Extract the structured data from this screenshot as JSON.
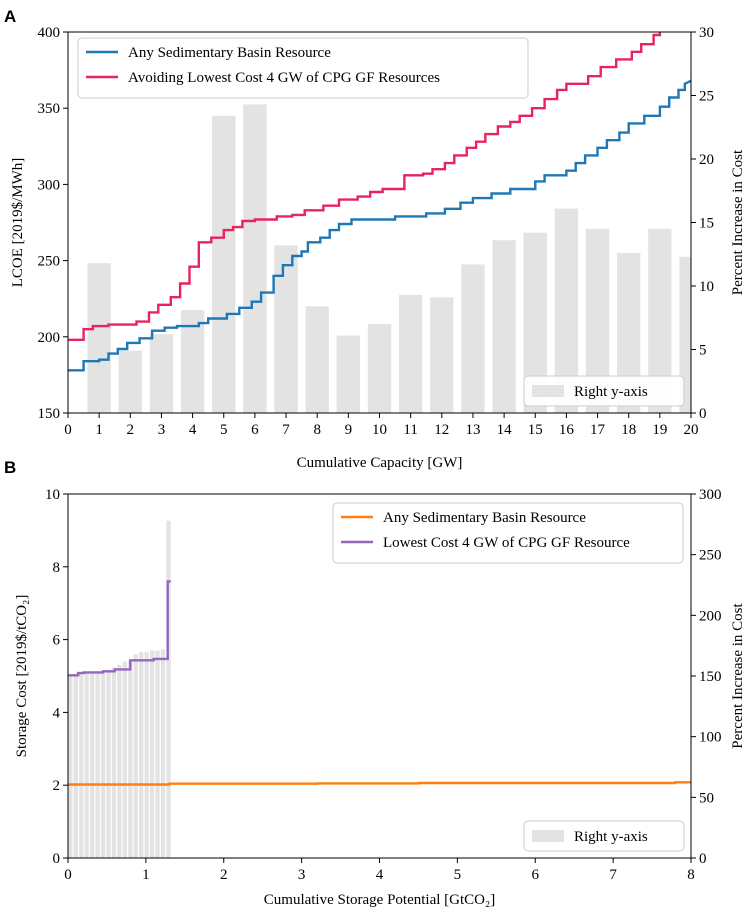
{
  "chart_data": [
    {
      "panel": "A",
      "type": "line+bar",
      "xlabel": "Cumulative Capacity [GW]",
      "ylabel": "LCOE [2019$/MWh]",
      "y2label": "Percent Increase in Cost",
      "xlim": [
        0,
        20
      ],
      "ylim": [
        150,
        400
      ],
      "y2lim": [
        0,
        30
      ],
      "xticks": [
        "0",
        "1",
        "2",
        "3",
        "4",
        "5",
        "6",
        "7",
        "8",
        "9",
        "10",
        "11",
        "12",
        "13",
        "14",
        "15",
        "16",
        "17",
        "18",
        "19",
        "20"
      ],
      "yticks": [
        "150",
        "200",
        "250",
        "300",
        "350",
        "400"
      ],
      "y2ticks": [
        "0",
        "5",
        "10",
        "15",
        "20",
        "25",
        "30"
      ],
      "legend_position": "top-left",
      "bar_legend_label": "Right y-axis",
      "bar_legend_position": "bottom-right",
      "series": [
        {
          "name": "Any Sedimentary Basin Resource",
          "color": "#1f77b4",
          "points": [
            [
              0,
              178
            ],
            [
              0.5,
              178
            ],
            [
              0.5,
              184
            ],
            [
              1,
              184
            ],
            [
              1,
              185
            ],
            [
              1.3,
              185
            ],
            [
              1.3,
              189
            ],
            [
              1.6,
              189
            ],
            [
              1.6,
              192
            ],
            [
              1.9,
              192
            ],
            [
              1.9,
              196
            ],
            [
              2.3,
              196
            ],
            [
              2.3,
              199
            ],
            [
              2.7,
              199
            ],
            [
              2.7,
              204
            ],
            [
              3.1,
              204
            ],
            [
              3.1,
              206
            ],
            [
              3.5,
              206
            ],
            [
              3.5,
              207
            ],
            [
              4.2,
              207
            ],
            [
              4.2,
              209
            ],
            [
              4.5,
              209
            ],
            [
              4.5,
              212
            ],
            [
              5.1,
              212
            ],
            [
              5.1,
              215
            ],
            [
              5.5,
              215
            ],
            [
              5.5,
              219
            ],
            [
              5.9,
              219
            ],
            [
              5.9,
              223
            ],
            [
              6.2,
              223
            ],
            [
              6.2,
              229
            ],
            [
              6.6,
              229
            ],
            [
              6.6,
              240
            ],
            [
              6.9,
              240
            ],
            [
              6.9,
              247
            ],
            [
              7.2,
              247
            ],
            [
              7.2,
              253
            ],
            [
              7.5,
              253
            ],
            [
              7.5,
              256
            ],
            [
              7.7,
              256
            ],
            [
              7.7,
              262
            ],
            [
              8.1,
              262
            ],
            [
              8.1,
              265
            ],
            [
              8.4,
              265
            ],
            [
              8.4,
              270
            ],
            [
              8.7,
              270
            ],
            [
              8.7,
              274
            ],
            [
              9.1,
              274
            ],
            [
              9.1,
              277
            ],
            [
              10.5,
              277
            ],
            [
              10.5,
              279
            ],
            [
              11.5,
              279
            ],
            [
              11.5,
              281
            ],
            [
              12.1,
              281
            ],
            [
              12.1,
              284
            ],
            [
              12.6,
              284
            ],
            [
              12.6,
              288
            ],
            [
              13.0,
              288
            ],
            [
              13.0,
              291
            ],
            [
              13.6,
              291
            ],
            [
              13.6,
              294
            ],
            [
              14.2,
              294
            ],
            [
              14.2,
              297
            ],
            [
              15.0,
              297
            ],
            [
              15.0,
              302
            ],
            [
              15.3,
              302
            ],
            [
              15.3,
              306
            ],
            [
              16.0,
              306
            ],
            [
              16.0,
              309
            ],
            [
              16.3,
              309
            ],
            [
              16.3,
              314
            ],
            [
              16.6,
              314
            ],
            [
              16.6,
              319
            ],
            [
              17.0,
              319
            ],
            [
              17.0,
              324
            ],
            [
              17.3,
              324
            ],
            [
              17.3,
              329
            ],
            [
              17.7,
              329
            ],
            [
              17.7,
              334
            ],
            [
              18.0,
              334
            ],
            [
              18.0,
              340
            ],
            [
              18.5,
              340
            ],
            [
              18.5,
              345
            ],
            [
              19.0,
              345
            ],
            [
              19.0,
              351
            ],
            [
              19.3,
              351
            ],
            [
              19.3,
              357
            ],
            [
              19.6,
              357
            ],
            [
              19.6,
              362
            ],
            [
              19.8,
              362
            ],
            [
              19.8,
              366
            ],
            [
              20,
              368
            ]
          ]
        },
        {
          "name": "Avoiding Lowest Cost 4 GW of CPG GF Resources",
          "color": "#e8245e",
          "points": [
            [
              0,
              198
            ],
            [
              0.5,
              198
            ],
            [
              0.5,
              205
            ],
            [
              0.8,
              205
            ],
            [
              0.8,
              207
            ],
            [
              1.3,
              207
            ],
            [
              1.3,
              208
            ],
            [
              2.2,
              208
            ],
            [
              2.2,
              210
            ],
            [
              2.6,
              210
            ],
            [
              2.6,
              216
            ],
            [
              2.9,
              216
            ],
            [
              2.9,
              221
            ],
            [
              3.3,
              221
            ],
            [
              3.3,
              226
            ],
            [
              3.6,
              226
            ],
            [
              3.6,
              235
            ],
            [
              3.9,
              235
            ],
            [
              3.9,
              246
            ],
            [
              4.2,
              246
            ],
            [
              4.2,
              262
            ],
            [
              4.6,
              262
            ],
            [
              4.6,
              265
            ],
            [
              5.0,
              265
            ],
            [
              5.0,
              270
            ],
            [
              5.3,
              270
            ],
            [
              5.3,
              272
            ],
            [
              5.6,
              272
            ],
            [
              5.6,
              276
            ],
            [
              6.0,
              276
            ],
            [
              6.0,
              277
            ],
            [
              6.7,
              277
            ],
            [
              6.7,
              279
            ],
            [
              7.2,
              279
            ],
            [
              7.2,
              280
            ],
            [
              7.6,
              280
            ],
            [
              7.6,
              283
            ],
            [
              8.2,
              283
            ],
            [
              8.2,
              286
            ],
            [
              8.7,
              286
            ],
            [
              8.7,
              290
            ],
            [
              9.3,
              290
            ],
            [
              9.3,
              292
            ],
            [
              9.7,
              292
            ],
            [
              9.7,
              295
            ],
            [
              10.1,
              295
            ],
            [
              10.1,
              297
            ],
            [
              10.8,
              297
            ],
            [
              10.8,
              306
            ],
            [
              11.4,
              306
            ],
            [
              11.4,
              307
            ],
            [
              11.7,
              307
            ],
            [
              11.7,
              310
            ],
            [
              12.1,
              310
            ],
            [
              12.1,
              314
            ],
            [
              12.4,
              314
            ],
            [
              12.4,
              319
            ],
            [
              12.8,
              319
            ],
            [
              12.8,
              324
            ],
            [
              13.1,
              324
            ],
            [
              13.1,
              328
            ],
            [
              13.4,
              328
            ],
            [
              13.4,
              333
            ],
            [
              13.8,
              333
            ],
            [
              13.8,
              338
            ],
            [
              14.2,
              338
            ],
            [
              14.2,
              341
            ],
            [
              14.5,
              341
            ],
            [
              14.5,
              345
            ],
            [
              14.9,
              345
            ],
            [
              14.9,
              350
            ],
            [
              15.3,
              350
            ],
            [
              15.3,
              356
            ],
            [
              15.7,
              356
            ],
            [
              15.7,
              362
            ],
            [
              16.0,
              362
            ],
            [
              16.0,
              366
            ],
            [
              16.7,
              366
            ],
            [
              16.7,
              371
            ],
            [
              17.1,
              371
            ],
            [
              17.1,
              377
            ],
            [
              17.6,
              377
            ],
            [
              17.6,
              382
            ],
            [
              18.1,
              382
            ],
            [
              18.1,
              387
            ],
            [
              18.4,
              387
            ],
            [
              18.4,
              392
            ],
            [
              18.8,
              392
            ],
            [
              18.8,
              398
            ],
            [
              19.0,
              398
            ],
            [
              19.0,
              400
            ]
          ]
        }
      ],
      "bars": {
        "y_axis": "right",
        "color": "#e3e3e3",
        "width": 0.75,
        "centers": [
          1,
          2,
          3,
          4,
          5,
          6,
          7,
          8,
          9,
          10,
          11,
          12,
          13,
          14,
          15,
          16,
          17,
          18,
          19,
          20
        ],
        "values": [
          11.8,
          4.9,
          6.2,
          8.1,
          23.4,
          24.3,
          13.2,
          8.4,
          6.1,
          7.0,
          9.3,
          9.1,
          11.7,
          13.6,
          14.2,
          16.1,
          14.5,
          12.6,
          14.5,
          12.3
        ]
      }
    },
    {
      "panel": "B",
      "type": "line+bar",
      "xlabel": "Cumulative Storage Potential [GtCO₂]",
      "ylabel": "Storage Cost [2019$/tCO₂]",
      "y2label": "Percent Increase in Cost",
      "xlim": [
        0,
        8
      ],
      "ylim": [
        0,
        10
      ],
      "y2lim": [
        0,
        300
      ],
      "xticks": [
        "0",
        "1",
        "2",
        "3",
        "4",
        "5",
        "6",
        "7",
        "8"
      ],
      "yticks": [
        "0",
        "2",
        "4",
        "6",
        "8",
        "10"
      ],
      "y2ticks": [
        "0",
        "50",
        "100",
        "150",
        "200",
        "250",
        "300"
      ],
      "legend_position": "top-right",
      "bar_legend_label": "Right y-axis",
      "bar_legend_position": "bottom-right",
      "series": [
        {
          "name": "Any Sedimentary Basin Resource",
          "color": "#ff7f0e",
          "points": [
            [
              0,
              2.02
            ],
            [
              1.3,
              2.02
            ],
            [
              1.3,
              2.04
            ],
            [
              3.2,
              2.04
            ],
            [
              3.2,
              2.05
            ],
            [
              4.5,
              2.05
            ],
            [
              4.5,
              2.06
            ],
            [
              7.8,
              2.06
            ],
            [
              7.8,
              2.08
            ],
            [
              8,
              2.08
            ]
          ]
        },
        {
          "name": "Lowest Cost 4 GW of CPG GF Resource",
          "color": "#9467bd",
          "points": [
            [
              0,
              5.02
            ],
            [
              0.13,
              5.02
            ],
            [
              0.13,
              5.08
            ],
            [
              0.2,
              5.08
            ],
            [
              0.2,
              5.1
            ],
            [
              0.45,
              5.1
            ],
            [
              0.45,
              5.13
            ],
            [
              0.6,
              5.13
            ],
            [
              0.6,
              5.18
            ],
            [
              0.8,
              5.18
            ],
            [
              0.8,
              5.43
            ],
            [
              1.1,
              5.43
            ],
            [
              1.1,
              5.47
            ],
            [
              1.28,
              5.47
            ],
            [
              1.28,
              7.6
            ],
            [
              1.32,
              7.6
            ]
          ]
        }
      ],
      "bars": {
        "y_axis": "right",
        "color": "#e3e3e3",
        "width": 0.055,
        "centers": [
          0.03,
          0.1,
          0.17,
          0.24,
          0.31,
          0.38,
          0.45,
          0.52,
          0.59,
          0.66,
          0.73,
          0.8,
          0.87,
          0.94,
          1.01,
          1.08,
          1.15,
          1.22,
          1.29
        ],
        "values": [
          150,
          151,
          152,
          153,
          153,
          154,
          154,
          155,
          157,
          159,
          162,
          163,
          168,
          170,
          170,
          171,
          171,
          172,
          278
        ]
      }
    }
  ]
}
